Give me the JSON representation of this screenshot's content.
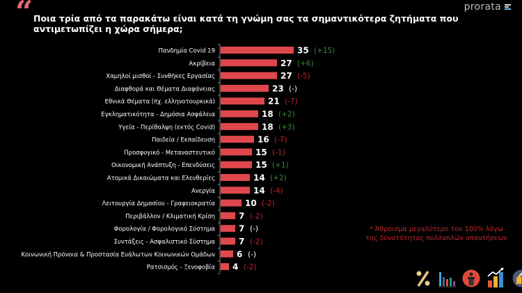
{
  "header": {
    "question": "Ποια τρία από τα παρακάτω είναι κατά τη γνώμη σας τα σημαντικότερα ζητήματα που αντιμετωπίζει η χώρα σήμερα;",
    "brand": "prorata"
  },
  "footnote": {
    "line1": "* Άθροισμα μεγαλύτερο του 100% λόγω",
    "line2": "της δυνατότητας πολλαπλών απαντήσεων"
  },
  "icons": [
    "percent-icon",
    "bar-chart-icon",
    "podium-icon",
    "growth-chart-icon",
    "houses-icon"
  ],
  "colors": {
    "bar": "#e0474c",
    "positive": "#3a8a3a",
    "negative": "#c0272d",
    "neutral": "#ffffff",
    "quote": "#e06b6f"
  },
  "chart_data": {
    "type": "bar",
    "orientation": "horizontal",
    "title": "Ποια τρία από τα παρακάτω είναι κατά τη γνώμη σας τα σημαντικότερα ζητήματα που αντιμετωπίζει η χώρα σήμερα;",
    "xlim": [
      0,
      40
    ],
    "grid": false,
    "categories": [
      "Πανδημία Covid 19",
      "Ακρίβεια",
      "Χαμηλοί μισθοί - Συνθήκες Εργασίας",
      "Διαφθορά και Θέματα Διαφάνειας",
      "Εθνικά Θέματα (πχ. ελληνοτουρκικά)",
      "Εγκληματικότητα - Δημόσια Ασφάλεια",
      "Υγεία - Περίθαλψη (εκτός Covid)",
      "Παιδεία / Εκπαίδευση",
      "Προσφυγικό - Μεταναστευτικό",
      "Οικονομική Ανάπτυξη - Επενδύσεις",
      "Ατομικά Δικαιώματα και Ελευθερίες",
      "Ανεργία",
      "Λειτουργία Δημοσίου - Γραφειοκρατία",
      "Περιβάλλον / Κλιματική Κρίση",
      "Φορολογία / Φορολογικό Σύστημα",
      "Συντάξεις - Ασφαλιστικό Σύστημα",
      "Κοινωνική Πρόνοια & Προστασία Ευάλωτων Κοινωνικών Ομάδων",
      "Ρατσισμός - Ξενοφοβία"
    ],
    "values": [
      35,
      27,
      27,
      23,
      21,
      18,
      18,
      16,
      15,
      15,
      14,
      14,
      10,
      7,
      7,
      7,
      6,
      4
    ],
    "changes": [
      "(+15)",
      "(+6)",
      "(-5)",
      "(-)",
      "(-7)",
      "(+2)",
      "(+3)",
      "(-7)",
      "(-1)",
      "(+1)",
      "(+2)",
      "(-4)",
      "(-2)",
      "(-2)",
      "(-)",
      "(-2)",
      "(-)",
      "(-2)"
    ]
  }
}
